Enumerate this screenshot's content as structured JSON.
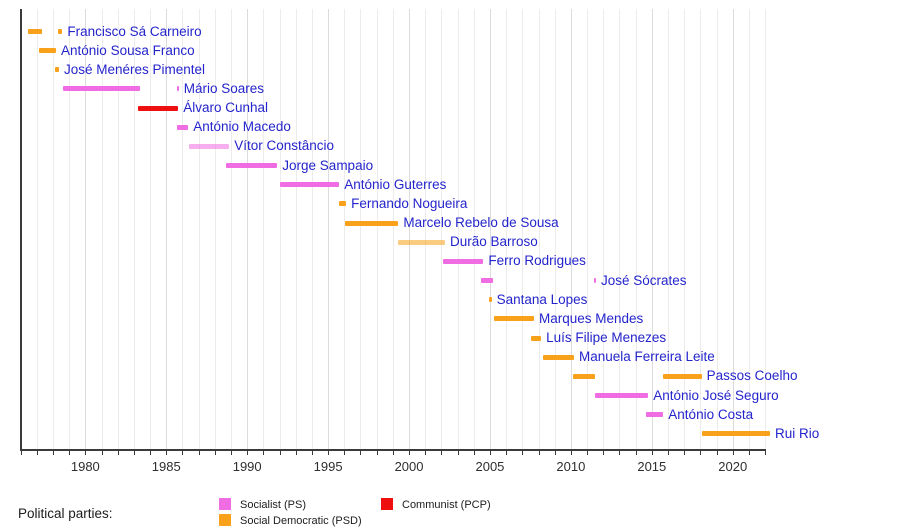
{
  "chart_data": {
    "type": "bar",
    "variant": "timeline-gantt",
    "title": "",
    "xlabel": "",
    "ylabel": "",
    "grid": "vertical, every year",
    "legend_position": "bottom",
    "x_axis": {
      "start_year": 1976,
      "end_year": 2022.5,
      "gridline_every_years": 1,
      "tick_every_years": 1,
      "label_every_years": 5,
      "tick_labels": [
        "1980",
        "1985",
        "1990",
        "1995",
        "2000",
        "2005",
        "2010",
        "2015",
        "2020"
      ]
    },
    "party_colors": {
      "PS": "#f06ce2",
      "PSD": "#f9a11b",
      "PCP": "#ee1010"
    },
    "person_label_color": "#2424cc",
    "rows": [
      {
        "name": "Francisco Sá Carneiro",
        "party": "PSD",
        "segments": [
          [
            1976.46,
            1977.32
          ],
          [
            1978.31,
            1978.58
          ]
        ]
      },
      {
        "name": "António Sousa Franco",
        "party": "PSD",
        "segments": [
          [
            1977.14,
            1978.19
          ]
        ]
      },
      {
        "name": "José Menéres Pimentel",
        "party": "PSD",
        "segments": [
          [
            1978.13,
            1978.37
          ]
        ]
      },
      {
        "name": "Mário Soares",
        "party": "PS",
        "segments": [
          [
            1978.62,
            1983.38
          ],
          [
            1985.64,
            1985.77
          ]
        ]
      },
      {
        "name": "Álvaro Cunhal",
        "party": "PCP",
        "segments": [
          [
            1983.27,
            1985.74
          ]
        ]
      },
      {
        "name": "António Macedo",
        "party": "PS",
        "segments": [
          [
            1985.64,
            1986.36
          ]
        ]
      },
      {
        "name": "Vítor Constâncio",
        "party": "PS",
        "muted": true,
        "segments": [
          [
            1986.42,
            1988.89
          ]
        ]
      },
      {
        "name": "Jorge Sampaio",
        "party": "PS",
        "segments": [
          [
            1988.69,
            1991.86
          ]
        ]
      },
      {
        "name": "António Guterres",
        "party": "PS",
        "segments": [
          [
            1992.03,
            1995.69
          ]
        ]
      },
      {
        "name": "Fernando Nogueira",
        "party": "PSD",
        "segments": [
          [
            1995.67,
            1996.11
          ]
        ]
      },
      {
        "name": "Marcelo Rebelo de Sousa",
        "party": "PSD",
        "segments": [
          [
            1996.04,
            1999.34
          ]
        ]
      },
      {
        "name": "Durão Barroso",
        "party": "PSD",
        "muted": true,
        "segments": [
          [
            1999.3,
            2002.22
          ]
        ]
      },
      {
        "name": "Ferro Rodrigues",
        "party": "PS",
        "segments": [
          [
            2002.08,
            2004.59
          ]
        ]
      },
      {
        "name": "José Sócrates",
        "party": "PS",
        "segments": [
          [
            2004.43,
            2005.17
          ],
          [
            2011.43,
            2011.55
          ]
        ]
      },
      {
        "name": "Santana Lopes",
        "party": "PSD",
        "segments": [
          [
            2004.96,
            2005.1
          ]
        ]
      },
      {
        "name": "Marques Mendes",
        "party": "PSD",
        "segments": [
          [
            2005.25,
            2007.72
          ]
        ]
      },
      {
        "name": "Luís Filipe Menezes",
        "party": "PSD",
        "segments": [
          [
            2007.54,
            2008.16
          ]
        ]
      },
      {
        "name": "Manuela Ferreira Leite",
        "party": "PSD",
        "segments": [
          [
            2008.25,
            2010.19
          ]
        ]
      },
      {
        "name": "Passos Coelho",
        "party": "PSD",
        "segments": [
          [
            2010.15,
            2011.49
          ],
          [
            2015.71,
            2018.08
          ]
        ]
      },
      {
        "name": "António José Seguro",
        "party": "PS",
        "segments": [
          [
            2011.49,
            2014.78
          ]
        ]
      },
      {
        "name": "António Costa",
        "party": "PS",
        "segments": [
          [
            2014.64,
            2015.71
          ]
        ]
      },
      {
        "name": "Rui Rio",
        "party": "PSD",
        "segments": [
          [
            2018.08,
            2022.3
          ]
        ]
      }
    ],
    "legend": {
      "title": "Political parties:",
      "items": [
        {
          "label": "Socialist (PS)",
          "party": "PS",
          "color": "#f06ce2"
        },
        {
          "label": "Social Democratic (PSD)",
          "party": "PSD",
          "color": "#f9a11b"
        },
        {
          "label": "Communist (PCP)",
          "party": "PCP",
          "color": "#ee1010"
        }
      ]
    }
  }
}
